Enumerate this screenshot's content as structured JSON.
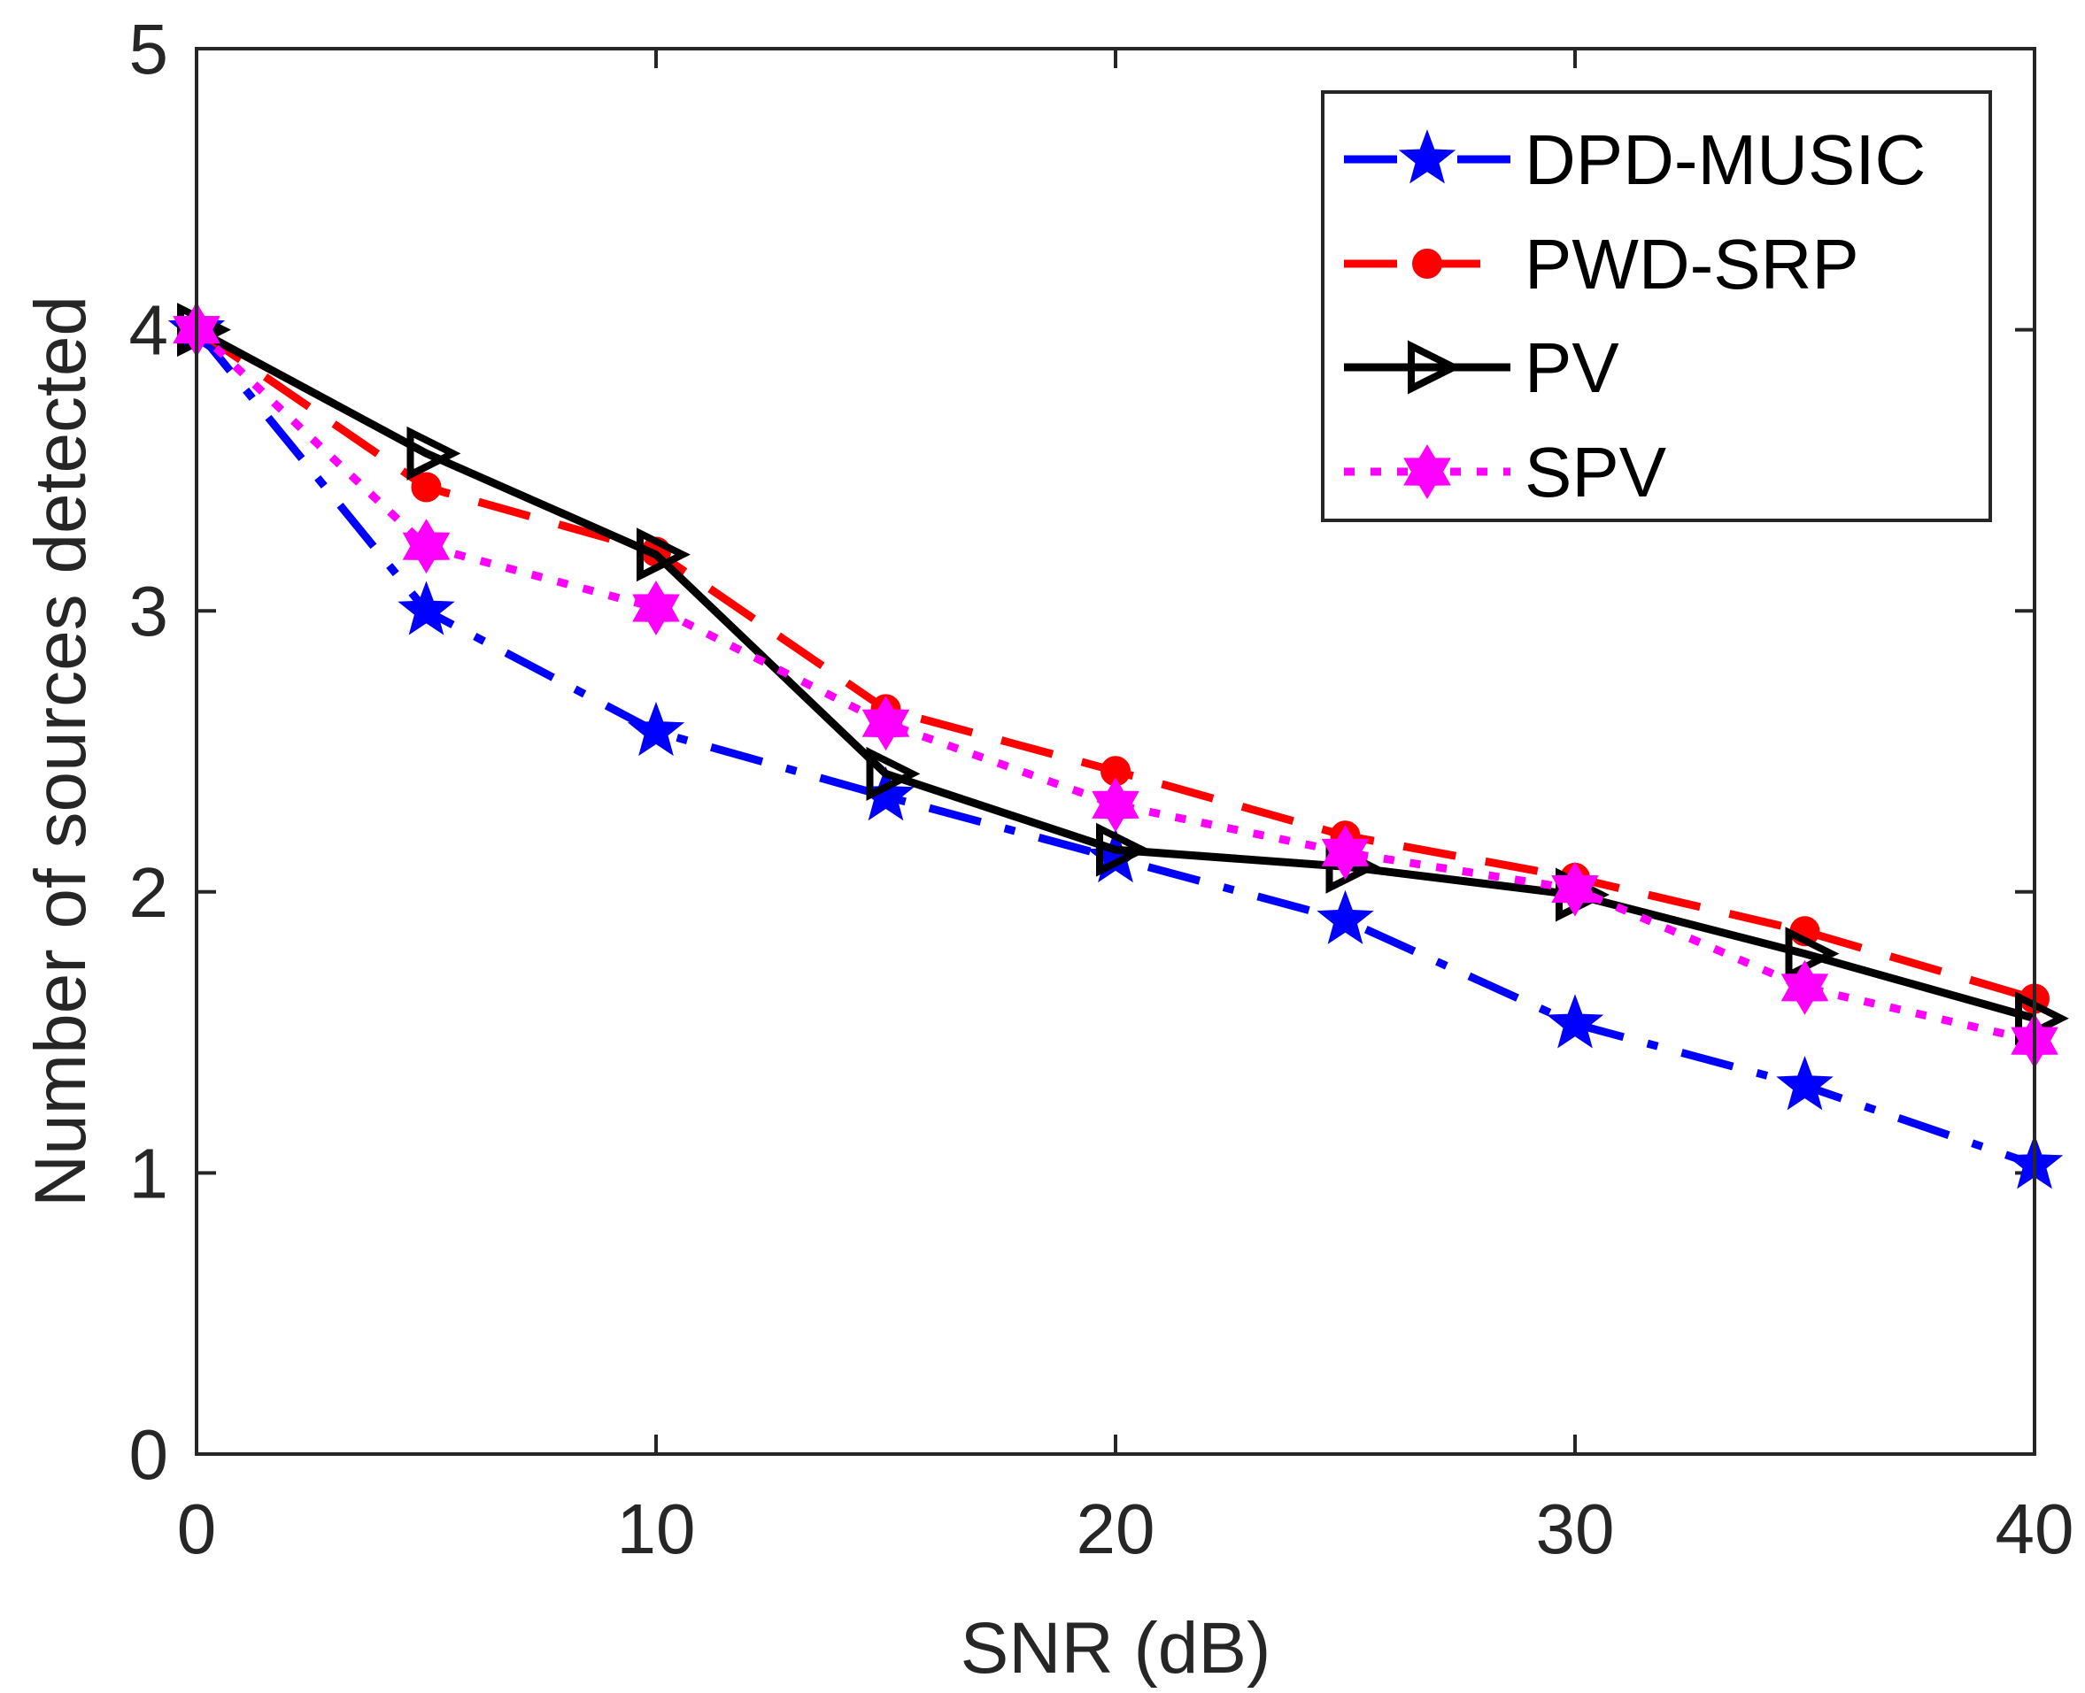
{
  "chart_data": {
    "type": "line",
    "title": "",
    "xlabel": "SNR (dB)",
    "ylabel": "Number of sources detected",
    "xlim": [
      0,
      40
    ],
    "ylim": [
      0,
      5
    ],
    "x_ticks": [
      0,
      10,
      20,
      30,
      40
    ],
    "y_ticks": [
      0,
      1,
      2,
      3,
      4,
      5
    ],
    "x_tick_labels": [
      "0",
      "10",
      "20",
      "30",
      "40"
    ],
    "y_tick_labels": [
      "0",
      "1",
      "2",
      "3",
      "4",
      "5"
    ],
    "grid": false,
    "legend_position": "top-right",
    "x": [
      0,
      5,
      10,
      15,
      20,
      25,
      30,
      35,
      40
    ],
    "series": [
      {
        "name": "DPD-MUSIC",
        "color": "#0000ff",
        "line_style": "dash-dot",
        "marker": "star-5",
        "values": [
          4.0,
          3.0,
          2.57,
          2.34,
          2.12,
          1.9,
          1.53,
          1.31,
          1.03
        ]
      },
      {
        "name": "PWD-SRP",
        "color": "#ff0000",
        "line_style": "dashed",
        "marker": "circle",
        "values": [
          4.0,
          3.44,
          3.21,
          2.65,
          2.43,
          2.2,
          2.05,
          1.86,
          1.62
        ]
      },
      {
        "name": "PV",
        "color": "#000000",
        "line_style": "solid",
        "marker": "triangle-right",
        "values": [
          4.0,
          3.56,
          3.2,
          2.42,
          2.15,
          2.09,
          1.99,
          1.78,
          1.55
        ]
      },
      {
        "name": "SPV",
        "color": "#ff00ff",
        "line_style": "dotted",
        "marker": "star-6",
        "values": [
          4.0,
          3.23,
          3.01,
          2.6,
          2.31,
          2.14,
          2.01,
          1.66,
          1.47
        ]
      }
    ]
  }
}
